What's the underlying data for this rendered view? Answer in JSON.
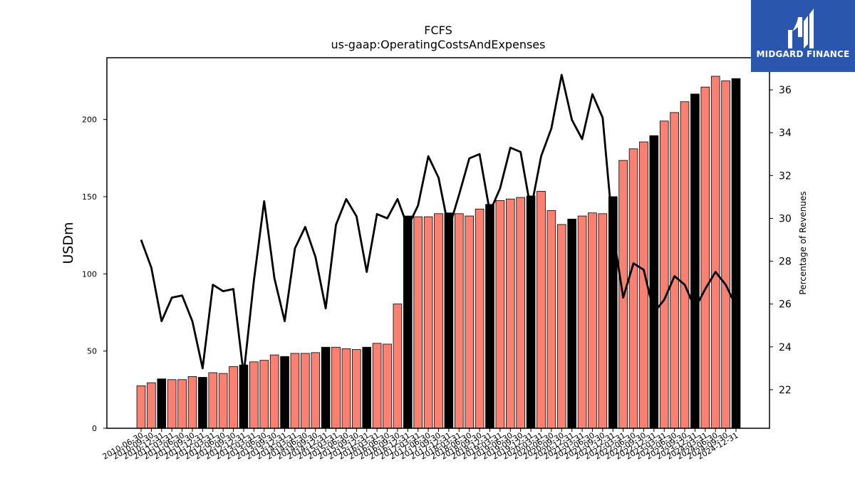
{
  "chart_data": {
    "type": "bar",
    "title": "FCFS",
    "subtitle": "us-gaap:OperatingCostsAndExpenses",
    "ylabel": "USDm",
    "y2label": "Percentage of Revenues",
    "ylim": [
      0,
      240
    ],
    "y2lim": [
      20.2,
      37.5
    ],
    "yticks": [
      0,
      50,
      100,
      150,
      200
    ],
    "y2ticks": [
      22,
      24,
      26,
      28,
      30,
      32,
      34,
      36
    ],
    "bar_colors": {
      "quarter": "#fa8072",
      "year_end": "#000000"
    },
    "line_color": "#000000",
    "categories": [
      "2010-06-30",
      "2010-09-30",
      "2010-12-31",
      "2011-03-31",
      "2011-06-30",
      "2011-09-30",
      "2011-12-31",
      "2012-03-31",
      "2012-06-30",
      "2012-09-30",
      "2012-12-31",
      "2013-03-31",
      "2013-06-30",
      "2013-09-30",
      "2013-12-31",
      "2014-03-31",
      "2014-06-30",
      "2014-09-30",
      "2014-12-31",
      "2015-03-31",
      "2015-06-30",
      "2015-09-30",
      "2015-12-31",
      "2016-03-31",
      "2016-06-30",
      "2016-09-30",
      "2016-12-31",
      "2017-03-31",
      "2017-06-30",
      "2017-09-30",
      "2017-12-31",
      "2018-03-31",
      "2018-06-30",
      "2018-09-30",
      "2018-12-31",
      "2019-03-31",
      "2019-06-30",
      "2019-09-30",
      "2019-12-31",
      "2020-03-31",
      "2020-06-30",
      "2020-09-30",
      "2020-12-31",
      "2021-03-31",
      "2021-06-30",
      "2021-09-30",
      "2021-12-31",
      "2022-03-31",
      "2022-06-30",
      "2022-09-30",
      "2022-12-31",
      "2023-03-31",
      "2023-06-30",
      "2023-09-30",
      "2023-12-31",
      "2024-03-31",
      "2024-06-30",
      "2024-09-30",
      "2024-12-31"
    ],
    "series": [
      {
        "type": "bar",
        "values": [
          27.5,
          29.5,
          32,
          31.5,
          31.5,
          33.5,
          33,
          36,
          35.5,
          40,
          41,
          43,
          44,
          47.5,
          46.5,
          48.5,
          48.5,
          49,
          52.5,
          52.5,
          51.5,
          51,
          52.5,
          55,
          54.5,
          80.5,
          137.5,
          137,
          137,
          139,
          139.5,
          139,
          137.5,
          142,
          145,
          147.5,
          148.5,
          149.5,
          150.5,
          153.5,
          141,
          132,
          135.5,
          137.5,
          139.5,
          139,
          150,
          173.5,
          181,
          185.5,
          189.5,
          199,
          204.5,
          211.5,
          216.5,
          221,
          228,
          225,
          226.5
        ],
        "year_end": [
          false,
          false,
          true,
          false,
          false,
          false,
          true,
          false,
          false,
          false,
          true,
          false,
          false,
          false,
          true,
          false,
          false,
          false,
          true,
          false,
          false,
          false,
          true,
          false,
          false,
          false,
          true,
          false,
          false,
          false,
          true,
          false,
          false,
          false,
          true,
          false,
          false,
          false,
          true,
          false,
          false,
          false,
          true,
          false,
          false,
          false,
          true,
          false,
          false,
          false,
          true,
          false,
          false,
          false,
          true,
          false,
          false,
          false,
          true
        ]
      },
      {
        "type": "line",
        "values": [
          29.0,
          27.7,
          25.2,
          26.3,
          26.4,
          25.2,
          23.0,
          26.9,
          26.6,
          26.7,
          22.7,
          27.1,
          30.8,
          27.2,
          25.2,
          28.6,
          29.6,
          28.2,
          25.8,
          29.7,
          30.9,
          30.1,
          27.5,
          30.2,
          30.0,
          30.9,
          29.6,
          30.6,
          32.9,
          31.9,
          29.5,
          31.1,
          32.8,
          33.0,
          30.3,
          31.4,
          33.3,
          33.1,
          30.4,
          32.9,
          34.2,
          36.7,
          34.6,
          33.7,
          35.8,
          34.7,
          29.4,
          26.3,
          27.9,
          27.6,
          25.6,
          26.2,
          27.3,
          26.9,
          25.8,
          26.7,
          27.5,
          26.9,
          25.9
        ]
      }
    ]
  },
  "logo": {
    "text": "MIDGARD FINANCE"
  }
}
